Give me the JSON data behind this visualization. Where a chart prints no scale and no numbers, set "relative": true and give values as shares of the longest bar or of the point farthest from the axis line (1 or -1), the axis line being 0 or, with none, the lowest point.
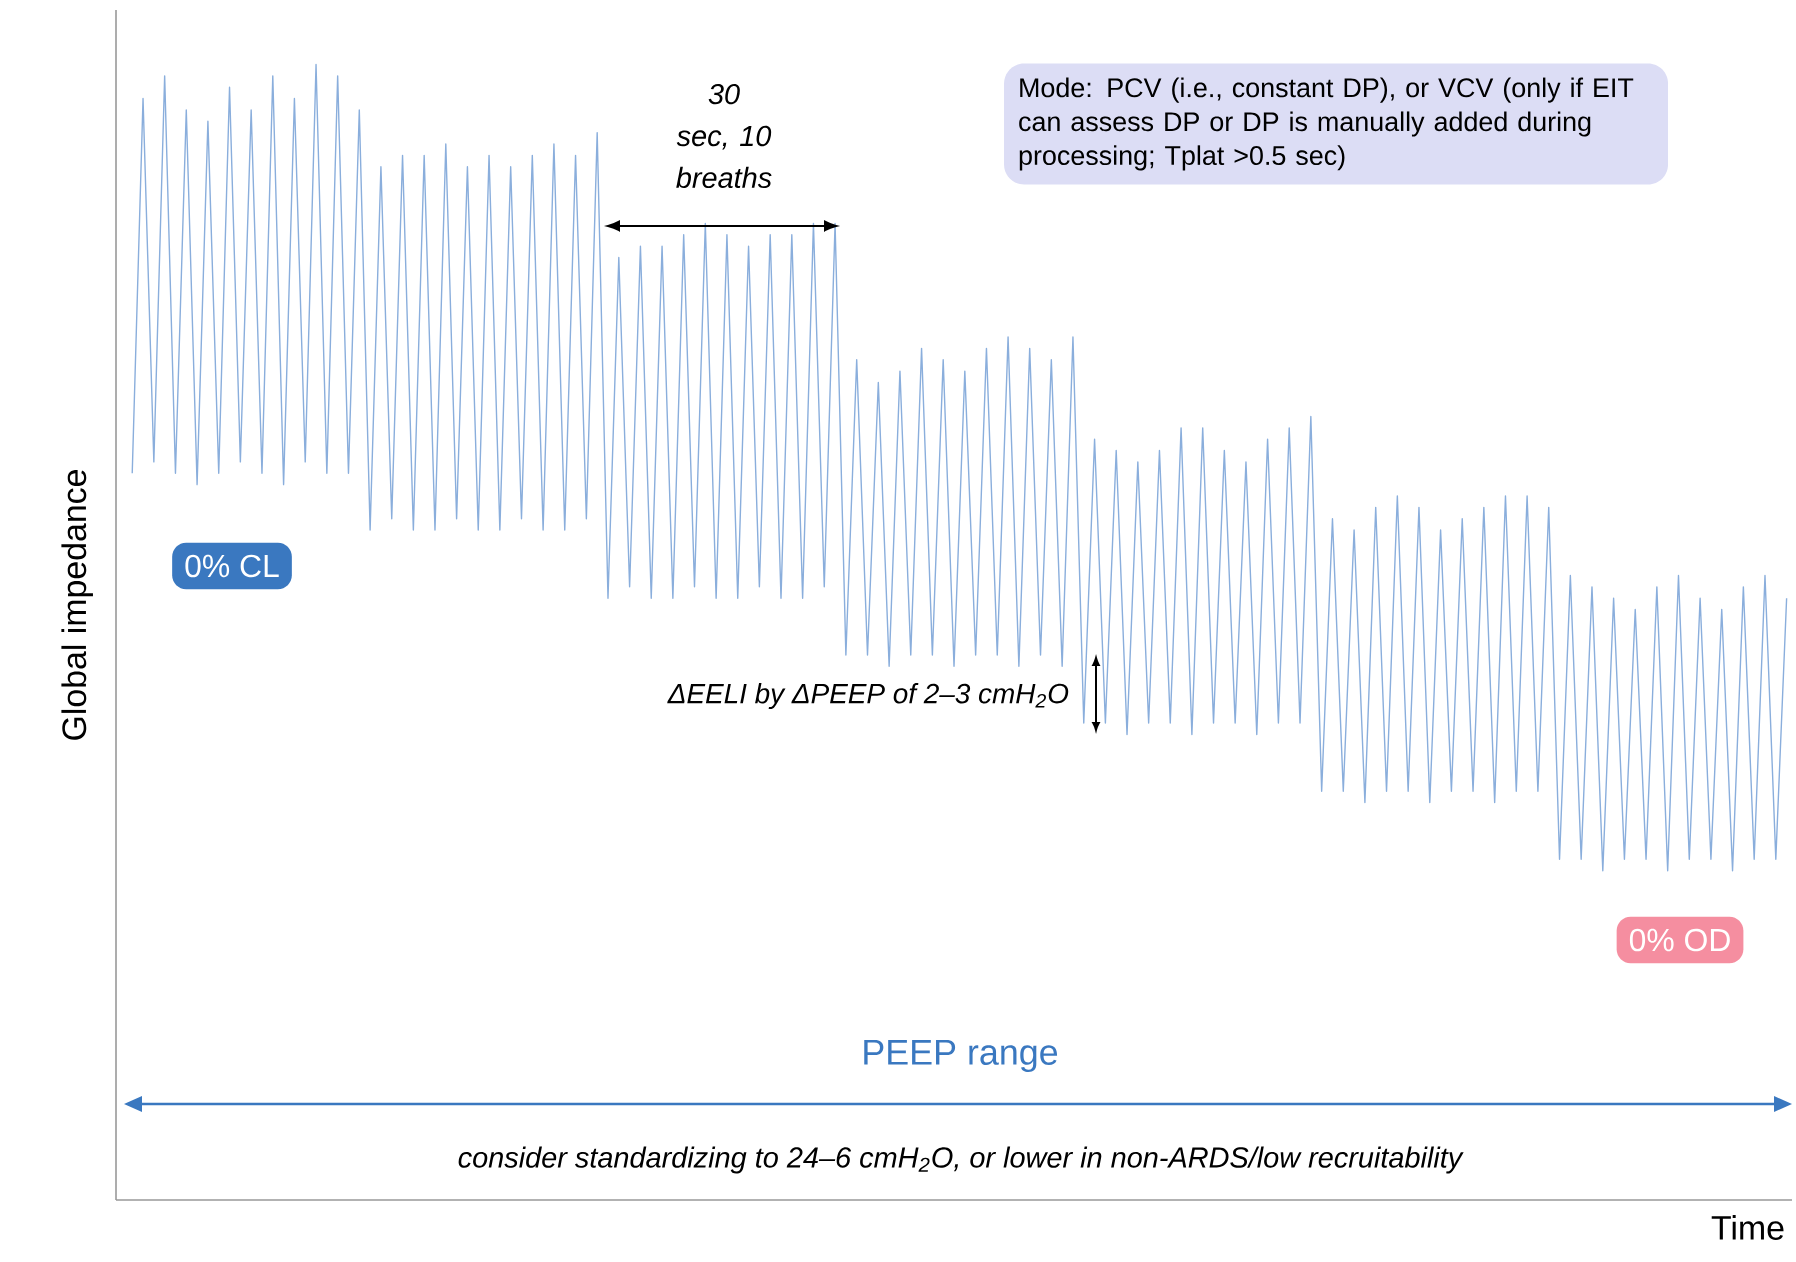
{
  "chart_data": {
    "type": "line",
    "relative": true,
    "color": "#8aaedc",
    "line_style": "solid",
    "marker": "none",
    "xlabel": "Time",
    "ylabel": "Global impedance",
    "annotations": [
      "Mode: PCV (i.e., constant DP), or VCV (only if EIT can assess DP or DP is manually added during processing; Tplat >0.5 sec)",
      "30 sec, 10 breaths",
      "0% CL",
      "ΔEELI by ΔPEEP of 2–3 cmH$_{2}$O",
      "0% OD",
      "PEEP range",
      "consider standardizing to 24–6 cmH$_{2}$O, or lower in non-ARDS/low recruitability"
    ],
    "categories": [
      null,
      null,
      null,
      null,
      null,
      null,
      null,
      null,
      null,
      null,
      null,
      null,
      null,
      null,
      null,
      null,
      null,
      null,
      null,
      null,
      null,
      null,
      null,
      null,
      null,
      null,
      null,
      null,
      null,
      null,
      null,
      null,
      null,
      null,
      null,
      null,
      null,
      null,
      null,
      null,
      null,
      null,
      null,
      null,
      null,
      null,
      null,
      null,
      null,
      null,
      null,
      null,
      null,
      null,
      null,
      null,
      null,
      null,
      null,
      null,
      null,
      null,
      null,
      null,
      null,
      null,
      null,
      null,
      null,
      null,
      null,
      null,
      null,
      null,
      null,
      null,
      null,
      null,
      null,
      null,
      null,
      null,
      null,
      null,
      null,
      null,
      null,
      null,
      null,
      null,
      null,
      null,
      null,
      null,
      null,
      null,
      null,
      null,
      null,
      null,
      null,
      null,
      null,
      null,
      null,
      null,
      null,
      null,
      null,
      null,
      null,
      null,
      null,
      null,
      null,
      null,
      null,
      null,
      null,
      null,
      null,
      null,
      null,
      null,
      null,
      null,
      null,
      null,
      null,
      null,
      null,
      null,
      null,
      null,
      null,
      null,
      null,
      null,
      null,
      null,
      null,
      null,
      null,
      null,
      null,
      null,
      null,
      null,
      null,
      null,
      null,
      null,
      null,
      null
    ],
    "values": [
      0.64,
      0.97,
      0.65,
      0.99,
      0.64,
      0.96,
      0.63,
      0.95,
      0.64,
      0.98,
      0.65,
      0.96,
      0.64,
      0.99,
      0.63,
      0.97,
      0.65,
      1.0,
      0.64,
      0.99,
      0.64,
      0.96,
      0.59,
      0.91,
      0.6,
      0.92,
      0.59,
      0.92,
      0.59,
      0.93,
      0.6,
      0.91,
      0.59,
      0.92,
      0.59,
      0.91,
      0.6,
      0.92,
      0.59,
      0.93,
      0.59,
      0.92,
      0.6,
      0.94,
      0.53,
      0.83,
      0.54,
      0.84,
      0.53,
      0.84,
      0.53,
      0.85,
      0.54,
      0.86,
      0.53,
      0.85,
      0.53,
      0.84,
      0.54,
      0.85,
      0.53,
      0.85,
      0.53,
      0.86,
      0.54,
      0.86,
      0.48,
      0.74,
      0.48,
      0.72,
      0.47,
      0.73,
      0.48,
      0.75,
      0.48,
      0.74,
      0.47,
      0.73,
      0.48,
      0.75,
      0.48,
      0.76,
      0.47,
      0.75,
      0.48,
      0.74,
      0.47,
      0.76,
      0.42,
      0.67,
      0.42,
      0.66,
      0.41,
      0.65,
      0.42,
      0.66,
      0.42,
      0.68,
      0.41,
      0.68,
      0.42,
      0.66,
      0.42,
      0.65,
      0.41,
      0.67,
      0.42,
      0.68,
      0.42,
      0.69,
      0.36,
      0.6,
      0.36,
      0.59,
      0.35,
      0.61,
      0.36,
      0.62,
      0.36,
      0.61,
      0.35,
      0.59,
      0.36,
      0.6,
      0.36,
      0.61,
      0.35,
      0.62,
      0.36,
      0.62,
      0.36,
      0.61,
      0.3,
      0.55,
      0.3,
      0.54,
      0.29,
      0.53,
      0.3,
      0.52,
      0.3,
      0.54,
      0.29,
      0.55,
      0.3,
      0.53,
      0.3,
      0.52,
      0.29,
      0.54,
      0.3,
      0.55,
      0.3,
      0.53
    ]
  }
}
